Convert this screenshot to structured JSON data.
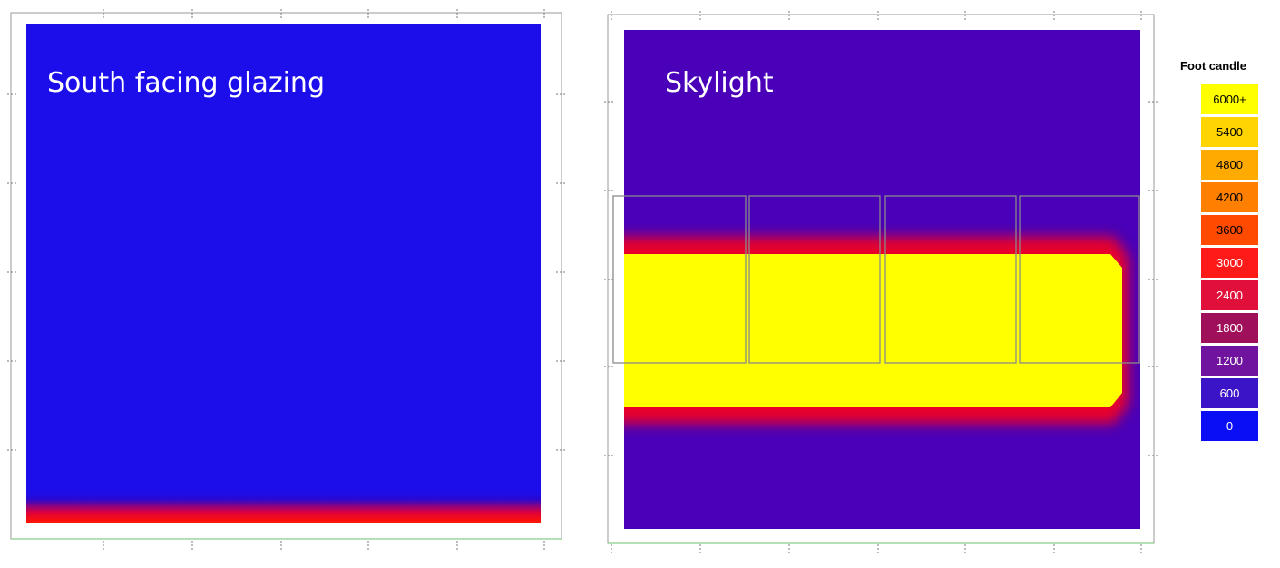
{
  "panels": [
    {
      "title": "South facing glazing",
      "background_color": "#1c0eea",
      "gradient_colors": [
        "#2a08d0",
        "#e0003a",
        "#ff1500"
      ]
    },
    {
      "title": "Skylight",
      "background_color": "#4a00b8",
      "core_color": "#ffff00",
      "edge_color": "#e8002a"
    }
  ],
  "legend": {
    "title": "Foot candle",
    "entries": [
      {
        "label": "6000+",
        "color": "#ffff00",
        "text_color": "#000000"
      },
      {
        "label": "5400",
        "color": "#ffd400",
        "text_color": "#000000"
      },
      {
        "label": "4800",
        "color": "#ffaa00",
        "text_color": "#000000"
      },
      {
        "label": "4200",
        "color": "#ff8000",
        "text_color": "#000000"
      },
      {
        "label": "3600",
        "color": "#ff4a00",
        "text_color": "#000000"
      },
      {
        "label": "3000",
        "color": "#ff1a1a",
        "text_color": "#ffffff"
      },
      {
        "label": "2400",
        "color": "#e0103a",
        "text_color": "#ffffff"
      },
      {
        "label": "1800",
        "color": "#a0105a",
        "text_color": "#ffffff"
      },
      {
        "label": "1200",
        "color": "#7014a0",
        "text_color": "#ffffff"
      },
      {
        "label": "600",
        "color": "#3c14c8",
        "text_color": "#ffffff"
      },
      {
        "label": "0",
        "color": "#0a0ef5",
        "text_color": "#ffffff"
      }
    ]
  },
  "chart_data": [
    {
      "type": "heatmap",
      "title": "South facing glazing",
      "unit": "Foot candle",
      "description_values": {
        "background_illuminance": 0,
        "south_edge_max_illuminance": 3000
      }
    },
    {
      "type": "heatmap",
      "title": "Skylight",
      "unit": "Foot candle",
      "skylight_count": 4,
      "description_values": {
        "background_illuminance": 600,
        "skylight_core_illuminance": 6000
      }
    }
  ]
}
